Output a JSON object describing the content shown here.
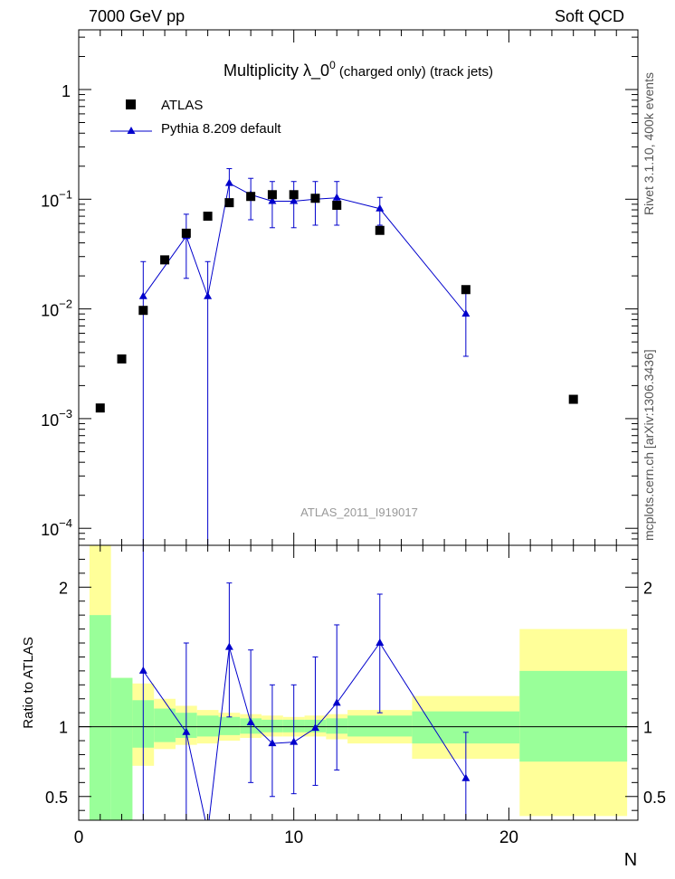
{
  "header": {
    "left": "7000 GeV pp",
    "right": "Soft QCD"
  },
  "side_labels": {
    "rivet": "Rivet 3.1.10,  400k events",
    "mcplots": "mcplots.cern.ch [arXiv:1306.3436]"
  },
  "title": {
    "main": "Multiplicity  λ_0",
    "superscript": "0",
    "suffix": " (charged only) (track jets)"
  },
  "watermark": "ATLAS_2011_I919017",
  "legend": {
    "atlas": "ATLAS",
    "pythia": "Pythia 8.209 default"
  },
  "ratio_ylabel": "Ratio to ATLAS",
  "xlabel": "N",
  "colors": {
    "pythia": "#0000cc",
    "band_inner": "#99ff99",
    "band_outer": "#ffff99",
    "atlas": "#000000"
  },
  "chart_data": [
    {
      "type": "scatter",
      "panel": "main",
      "yscale": "log",
      "xlim": [
        0,
        26
      ],
      "ylim": [
        7e-05,
        3.5
      ],
      "yticks": [
        {
          "v": 0.0001,
          "base": "10",
          "exp": "−4"
        },
        {
          "v": 0.001,
          "base": "10",
          "exp": "−3"
        },
        {
          "v": 0.01,
          "base": "10",
          "exp": "−2"
        },
        {
          "v": 0.1,
          "base": "10",
          "exp": "−1"
        },
        {
          "v": 1,
          "base": "1",
          "exp": ""
        }
      ],
      "series": [
        {
          "name": "ATLAS",
          "points": [
            {
              "x": 1,
              "y": 0.00125
            },
            {
              "x": 2,
              "y": 0.0035
            },
            {
              "x": 3,
              "y": 0.0097
            },
            {
              "x": 4,
              "y": 0.028
            },
            {
              "x": 5,
              "y": 0.049
            },
            {
              "x": 6,
              "y": 0.07
            },
            {
              "x": 7,
              "y": 0.093
            },
            {
              "x": 8,
              "y": 0.106
            },
            {
              "x": 9,
              "y": 0.11
            },
            {
              "x": 10,
              "y": 0.11
            },
            {
              "x": 11,
              "y": 0.102
            },
            {
              "x": 12,
              "y": 0.088
            },
            {
              "x": 14,
              "y": 0.052
            },
            {
              "x": 18,
              "y": 0.015
            },
            {
              "x": 23,
              "y": 0.0015
            }
          ]
        },
        {
          "name": "Pythia 8.209 default",
          "points": [
            {
              "x": 3,
              "y": 0.013,
              "lo": 1e-05,
              "hi": 0.027
            },
            {
              "x": 5,
              "y": 0.046,
              "lo": 0.019,
              "hi": 0.073
            },
            {
              "x": 6,
              "y": 0.013,
              "lo": 1e-05,
              "hi": 0.027
            },
            {
              "x": 7,
              "y": 0.14,
              "lo": 0.093,
              "hi": 0.19
            },
            {
              "x": 8,
              "y": 0.11,
              "lo": 0.065,
              "hi": 0.155
            },
            {
              "x": 9,
              "y": 0.096,
              "lo": 0.055,
              "hi": 0.145
            },
            {
              "x": 10,
              "y": 0.096,
              "lo": 0.055,
              "hi": 0.145
            },
            {
              "x": 11,
              "y": 0.1,
              "lo": 0.058,
              "hi": 0.145
            },
            {
              "x": 12,
              "y": 0.103,
              "lo": 0.058,
              "hi": 0.145
            },
            {
              "x": 14,
              "y": 0.082,
              "lo": 0.058,
              "hi": 0.104
            },
            {
              "x": 18,
              "y": 0.009,
              "lo": 0.0037,
              "hi": 0.0145
            }
          ]
        }
      ]
    },
    {
      "type": "scatter",
      "panel": "ratio",
      "xlim": [
        0,
        26
      ],
      "ylim": [
        0.33,
        2.3
      ],
      "yticks": [
        0.5,
        1,
        2
      ],
      "xticks": [
        0,
        10,
        20
      ],
      "bands": [
        {
          "x0": 0.5,
          "x1": 1.5,
          "inner": [
            0.33,
            1.8
          ],
          "outer": [
            0.33,
            2.3
          ]
        },
        {
          "x0": 1.5,
          "x1": 2.5,
          "inner": [
            0.33,
            1.35
          ],
          "outer": [
            0.72,
            1.35
          ]
        },
        {
          "x0": 2.5,
          "x1": 3.5,
          "inner": [
            0.85,
            1.19
          ],
          "outer": [
            0.72,
            1.31
          ]
        },
        {
          "x0": 3.5,
          "x1": 4.5,
          "inner": [
            0.89,
            1.13
          ],
          "outer": [
            0.84,
            1.2
          ]
        },
        {
          "x0": 4.5,
          "x1": 5.5,
          "inner": [
            0.92,
            1.1
          ],
          "outer": [
            0.87,
            1.15
          ]
        },
        {
          "x0": 5.5,
          "x1": 6.5,
          "inner": [
            0.93,
            1.08
          ],
          "outer": [
            0.88,
            1.12
          ]
        },
        {
          "x0": 6.5,
          "x1": 7.5,
          "inner": [
            0.94,
            1.07
          ],
          "outer": [
            0.9,
            1.1
          ]
        },
        {
          "x0": 7.5,
          "x1": 8.5,
          "inner": [
            0.95,
            1.06
          ],
          "outer": [
            0.92,
            1.09
          ]
        },
        {
          "x0": 8.5,
          "x1": 9.5,
          "inner": [
            0.96,
            1.05
          ],
          "outer": [
            0.93,
            1.08
          ]
        },
        {
          "x0": 9.5,
          "x1": 10.5,
          "inner": [
            0.96,
            1.05
          ],
          "outer": [
            0.93,
            1.07
          ]
        },
        {
          "x0": 10.5,
          "x1": 11.5,
          "inner": [
            0.96,
            1.05
          ],
          "outer": [
            0.93,
            1.08
          ]
        },
        {
          "x0": 11.5,
          "x1": 12.5,
          "inner": [
            0.95,
            1.06
          ],
          "outer": [
            0.91,
            1.09
          ]
        },
        {
          "x0": 12.5,
          "x1": 15.5,
          "inner": [
            0.93,
            1.08
          ],
          "outer": [
            0.88,
            1.12
          ]
        },
        {
          "x0": 15.5,
          "x1": 20.5,
          "inner": [
            0.88,
            1.11
          ],
          "outer": [
            0.77,
            1.22
          ]
        },
        {
          "x0": 20.5,
          "x1": 25.5,
          "inner": [
            0.75,
            1.4
          ],
          "outer": [
            0.36,
            1.7
          ]
        }
      ],
      "series": [
        {
          "name": "Pythia 8.209 default",
          "points": [
            {
              "x": 3,
              "y": 1.4,
              "lo": 0.33,
              "hi": 2.3
            },
            {
              "x": 5,
              "y": 0.96,
              "lo": 0.33,
              "hi": 1.6
            },
            {
              "x": 6,
              "y": 0.25,
              "lo": 0.33,
              "hi": 0.33
            },
            {
              "x": 7,
              "y": 1.57,
              "lo": 1.07,
              "hi": 2.03
            },
            {
              "x": 8,
              "y": 1.03,
              "lo": 0.6,
              "hi": 1.55
            },
            {
              "x": 9,
              "y": 0.88,
              "lo": 0.5,
              "hi": 1.3
            },
            {
              "x": 10,
              "y": 0.89,
              "lo": 0.52,
              "hi": 1.3
            },
            {
              "x": 11,
              "y": 0.99,
              "lo": 0.58,
              "hi": 1.5
            },
            {
              "x": 12,
              "y": 1.17,
              "lo": 0.69,
              "hi": 1.73
            },
            {
              "x": 14,
              "y": 1.6,
              "lo": 1.1,
              "hi": 1.95
            },
            {
              "x": 18,
              "y": 0.63,
              "lo": 0.33,
              "hi": 0.96
            }
          ]
        }
      ]
    }
  ]
}
